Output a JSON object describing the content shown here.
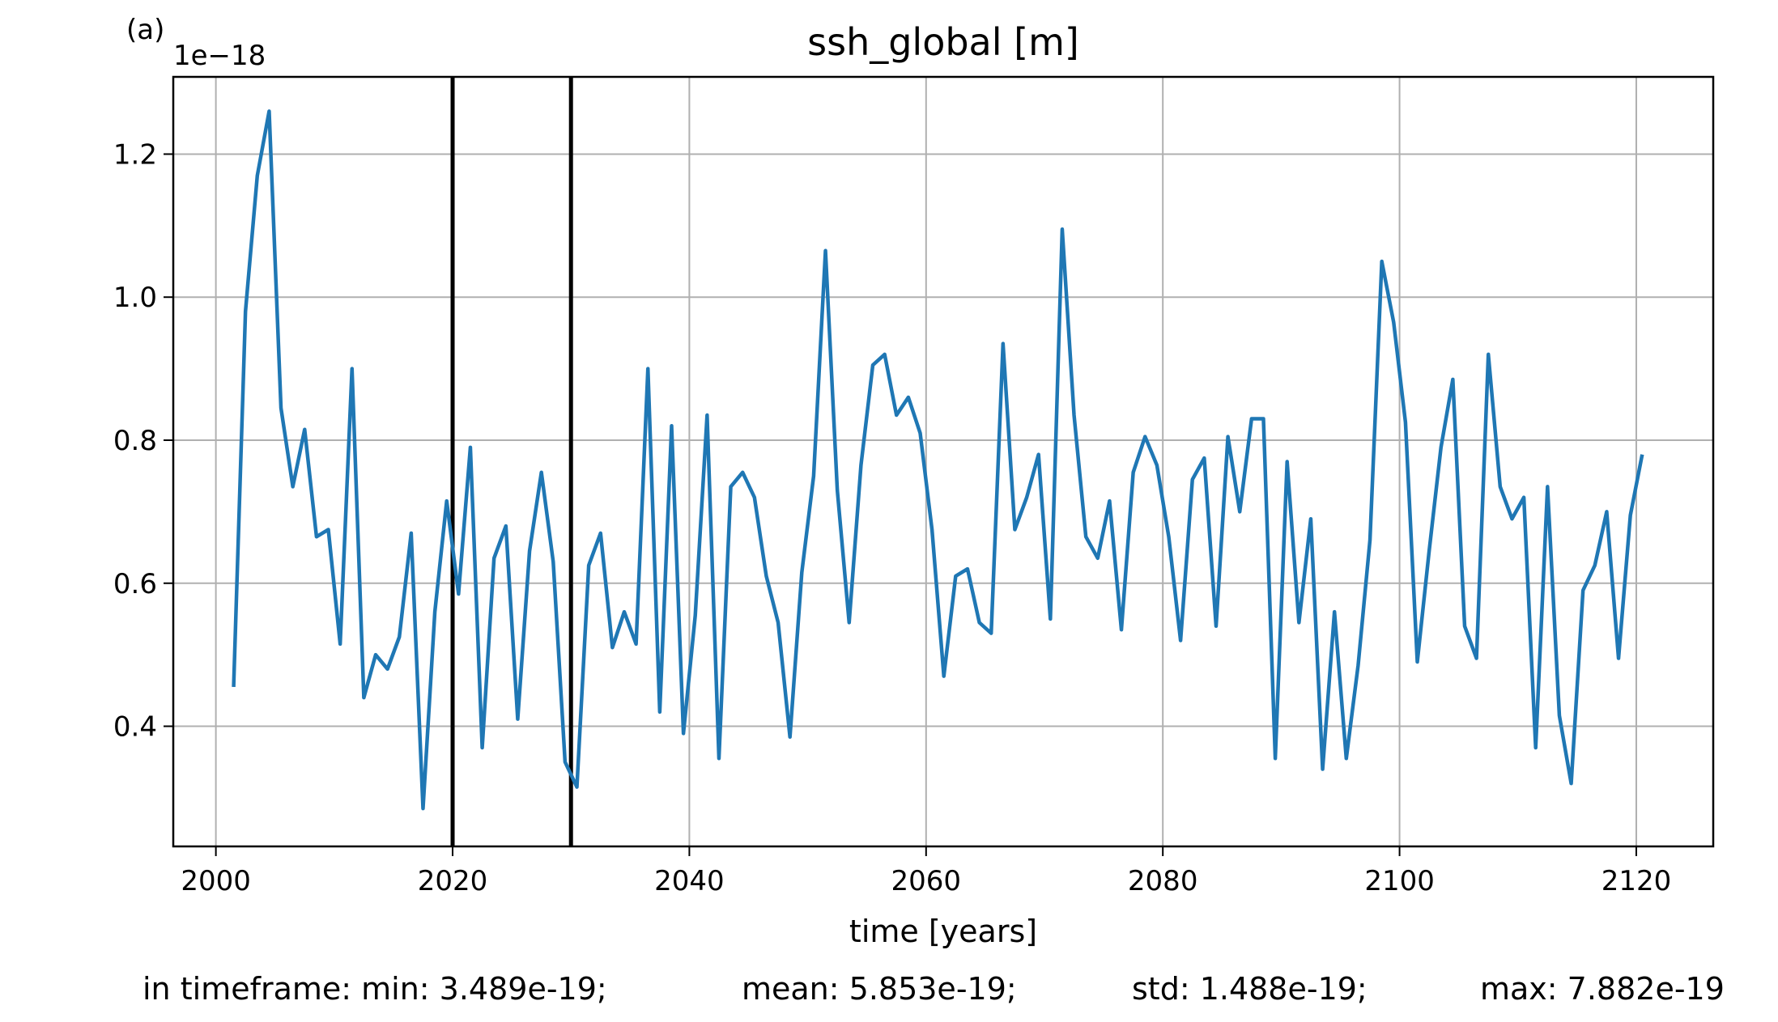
{
  "chart_data": {
    "type": "line",
    "panel_label": "(a)",
    "title": "ssh_global [m]",
    "xlabel": "time [years]",
    "ylabel": "",
    "y_offset_label": "1e−18",
    "xlim": [
      1996.4,
      2126.5
    ],
    "ylim": [
      0.232,
      1.308
    ],
    "xticks": [
      2000,
      2020,
      2040,
      2060,
      2080,
      2100,
      2120
    ],
    "yticks": [
      0.4,
      0.6,
      0.8,
      1.0,
      1.2
    ],
    "ytick_labels": [
      "0.4",
      "0.6",
      "0.8",
      "1.0",
      "1.2"
    ],
    "grid": true,
    "vertical_lines": [
      2020,
      2030
    ],
    "line_color": "#1f77b4",
    "series": [
      {
        "x": [
          2001.5,
          2002.5,
          2003.5,
          2004.5,
          2005.5,
          2006.5,
          2007.5,
          2008.5,
          2009.5,
          2010.5,
          2011.5,
          2012.5,
          2013.5,
          2014.5,
          2015.5,
          2016.5,
          2017.5,
          2018.5,
          2019.5,
          2020.5,
          2021.5,
          2022.5,
          2023.5,
          2024.5,
          2025.5,
          2026.5,
          2027.5,
          2028.5,
          2029.5,
          2030.5,
          2031.5,
          2032.5,
          2033.5,
          2034.5,
          2035.5,
          2036.5,
          2037.5,
          2038.5,
          2039.5,
          2040.5,
          2041.5,
          2042.5,
          2043.5,
          2044.5,
          2045.5,
          2046.5,
          2047.5,
          2048.5,
          2049.5,
          2050.5,
          2051.5,
          2052.5,
          2053.5,
          2054.5,
          2055.5,
          2056.5,
          2057.5,
          2058.5,
          2059.5,
          2060.5,
          2061.5,
          2062.5,
          2063.5,
          2064.5,
          2065.5,
          2066.5,
          2067.5,
          2068.5,
          2069.5,
          2070.5,
          2071.5,
          2072.5,
          2073.5,
          2074.5,
          2075.5,
          2076.5,
          2077.5,
          2078.5,
          2079.5,
          2080.5,
          2081.5,
          2082.5,
          2083.5,
          2084.5,
          2085.5,
          2086.5,
          2087.5,
          2088.5,
          2089.5,
          2090.5,
          2091.5,
          2092.5,
          2093.5,
          2094.5,
          2095.5,
          2096.5,
          2097.5,
          2098.5,
          2099.5,
          2100.5,
          2101.5,
          2102.5,
          2103.5,
          2104.5,
          2105.5,
          2106.5,
          2107.5,
          2108.5,
          2109.5,
          2110.5,
          2111.5,
          2112.5,
          2113.5,
          2114.5,
          2115.5,
          2116.5,
          2117.5,
          2118.5,
          2119.5,
          2120.5
        ],
        "values": [
          0.455,
          0.98,
          1.17,
          1.26,
          0.845,
          0.735,
          0.815,
          0.665,
          0.675,
          0.515,
          0.9,
          0.44,
          0.5,
          0.48,
          0.525,
          0.67,
          0.285,
          0.56,
          0.715,
          0.585,
          0.79,
          0.37,
          0.635,
          0.68,
          0.41,
          0.645,
          0.755,
          0.63,
          0.35,
          0.315,
          0.625,
          0.67,
          0.51,
          0.56,
          0.515,
          0.9,
          0.42,
          0.82,
          0.39,
          0.555,
          0.835,
          0.355,
          0.735,
          0.755,
          0.72,
          0.61,
          0.545,
          0.385,
          0.615,
          0.75,
          1.065,
          0.73,
          0.545,
          0.765,
          0.905,
          0.92,
          0.835,
          0.86,
          0.81,
          0.675,
          0.47,
          0.61,
          0.62,
          0.545,
          0.53,
          0.935,
          0.675,
          0.72,
          0.78,
          0.55,
          1.095,
          0.835,
          0.665,
          0.635,
          0.715,
          0.535,
          0.755,
          0.805,
          0.765,
          0.665,
          0.52,
          0.745,
          0.775,
          0.54,
          0.805,
          0.7,
          0.83,
          0.83,
          0.355,
          0.77,
          0.545,
          0.69,
          0.34,
          0.56,
          0.355,
          0.485,
          0.66,
          1.05,
          0.965,
          0.825,
          0.49,
          0.645,
          0.79,
          0.885,
          0.54,
          0.495,
          0.92,
          0.735,
          0.69,
          0.72,
          0.37,
          0.735,
          0.415,
          0.32,
          0.59,
          0.625,
          0.7,
          0.495,
          0.695,
          0.78
        ]
      }
    ],
    "footer": {
      "min": "in timeframe: min: 3.489e-19;",
      "mean": "mean: 5.853e-19;",
      "std": "std: 1.488e-19;",
      "max": "max: 7.882e-19"
    }
  }
}
